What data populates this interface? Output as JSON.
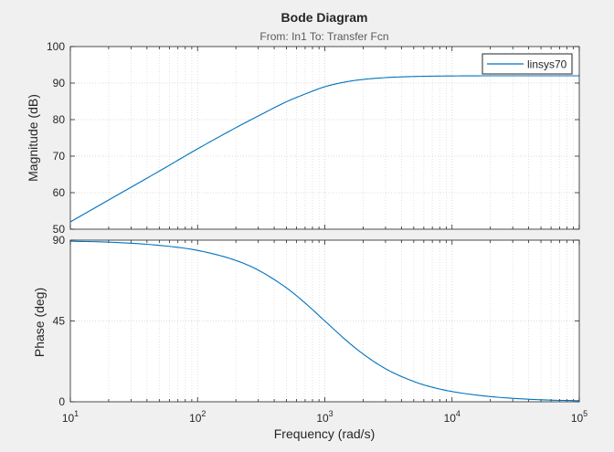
{
  "chart_data": {
    "type": "line",
    "title": "Bode Diagram",
    "subtitle": "From: In1  To: Transfer Fcn",
    "xlabel": "Frequency  (rad/s)",
    "x_scale": "log",
    "xlim": [
      10,
      100000
    ],
    "x_ticks": [
      10,
      100,
      1000,
      10000,
      100000
    ],
    "x_tick_labels": [
      {
        "base": "10",
        "exp": "1"
      },
      {
        "base": "10",
        "exp": "2"
      },
      {
        "base": "10",
        "exp": "3"
      },
      {
        "base": "10",
        "exp": "4"
      },
      {
        "base": "10",
        "exp": "5"
      }
    ],
    "grid": true,
    "legend": {
      "entries": [
        "linsys70"
      ],
      "position": "top-right"
    },
    "series_color": "#0072bd",
    "panels": [
      {
        "id": "magnitude",
        "ylabel": "Magnitude (dB)",
        "ylim": [
          50,
          100
        ],
        "y_ticks": [
          50,
          60,
          70,
          80,
          90,
          100
        ],
        "y_tick_labels": [
          "50",
          "60",
          "70",
          "80",
          "90",
          "100"
        ],
        "series": [
          {
            "name": "linsys70",
            "x": [
              10,
              20,
              50,
              100,
              200,
              300,
              500,
              700,
              1000,
              1500,
              2000,
              3000,
              5000,
              10000,
              30000,
              100000
            ],
            "y": [
              52.0,
              58.0,
              65.9,
              72.0,
              77.8,
              81.0,
              84.9,
              87.0,
              89.0,
              90.4,
              91.0,
              91.5,
              91.8,
              91.96,
              92.0,
              92.0
            ]
          }
        ]
      },
      {
        "id": "phase",
        "ylabel": "Phase (deg)",
        "ylim": [
          0,
          90
        ],
        "y_ticks": [
          0,
          45,
          90
        ],
        "y_tick_labels": [
          "0",
          "45",
          "90"
        ],
        "series": [
          {
            "name": "linsys70",
            "x": [
              10,
              20,
              50,
              100,
              200,
              300,
              500,
              700,
              1000,
              1500,
              2000,
              3000,
              5000,
              7000,
              10000,
              20000,
              50000,
              100000
            ],
            "y": [
              89.4,
              88.9,
              87.1,
              84.3,
              78.7,
              73.3,
              63.4,
              55.0,
              45.0,
              33.7,
              26.6,
              18.4,
              11.3,
              8.1,
              5.7,
              2.9,
              1.1,
              0.6
            ]
          }
        ]
      }
    ]
  }
}
